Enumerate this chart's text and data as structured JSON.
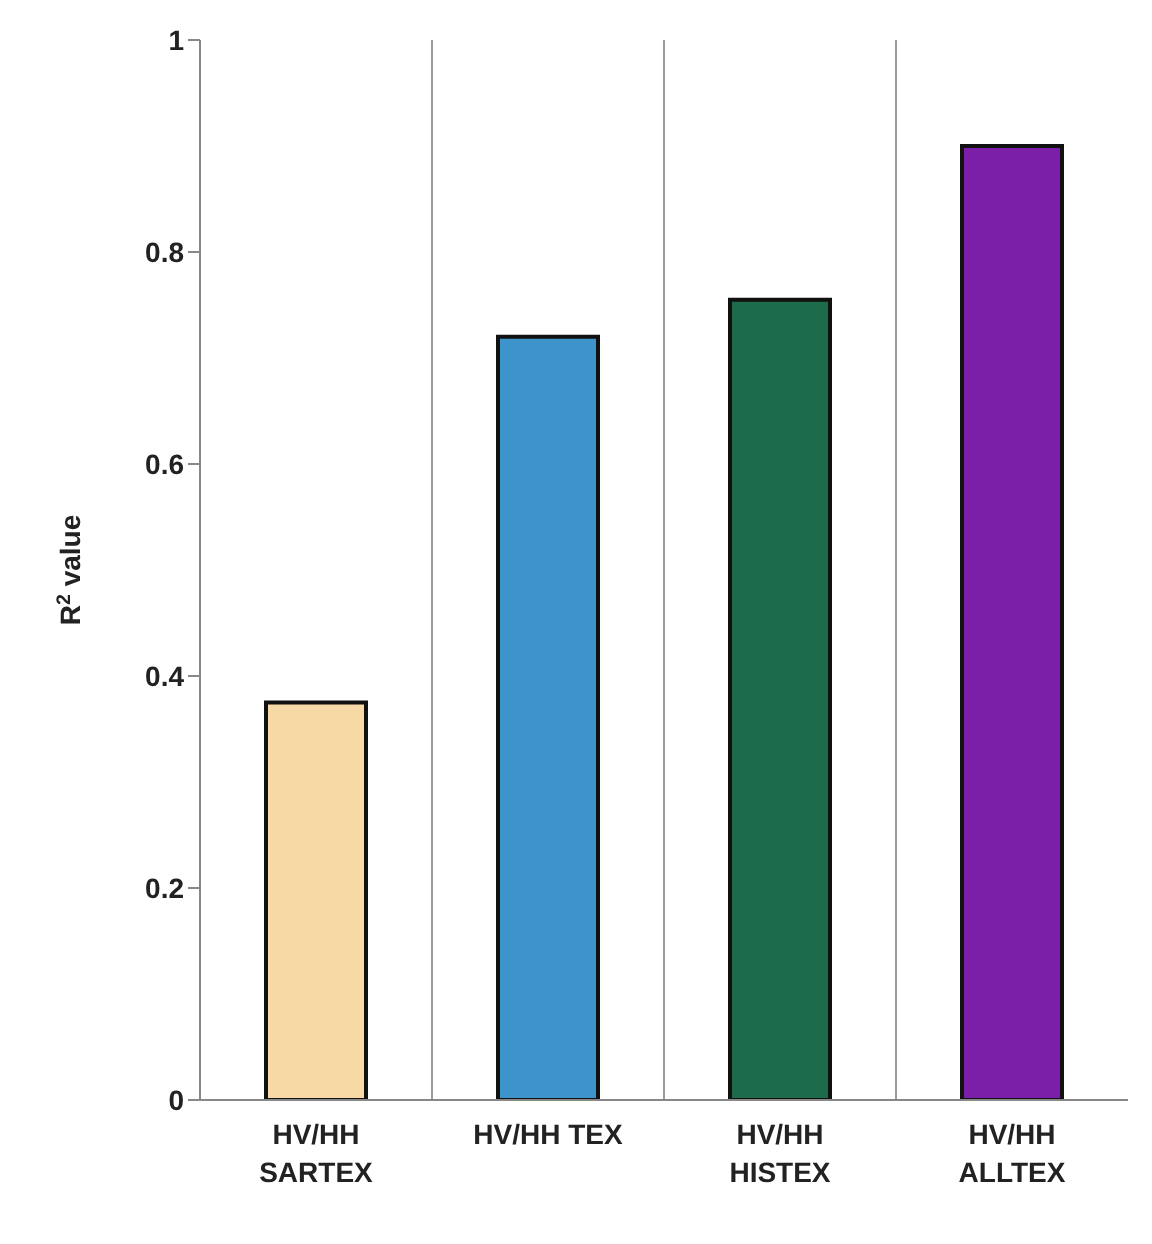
{
  "chart_data": {
    "type": "bar",
    "ylabel": "R$^{2}$ value",
    "categories": [
      "HV/HH SARTEX",
      "HV/HH TEX",
      "HV/HH HISTEX",
      "HV/HH ALLTEX"
    ],
    "values": [
      0.375,
      0.72,
      0.755,
      0.9
    ],
    "colors": [
      "#f7d9a6",
      "#3d94cb",
      "#1c6b4b",
      "#7b1fa8"
    ],
    "ylim": [
      0,
      1
    ],
    "yticks": [
      0,
      0.2,
      0.4,
      0.6,
      0.8,
      1
    ],
    "grid": "x"
  }
}
